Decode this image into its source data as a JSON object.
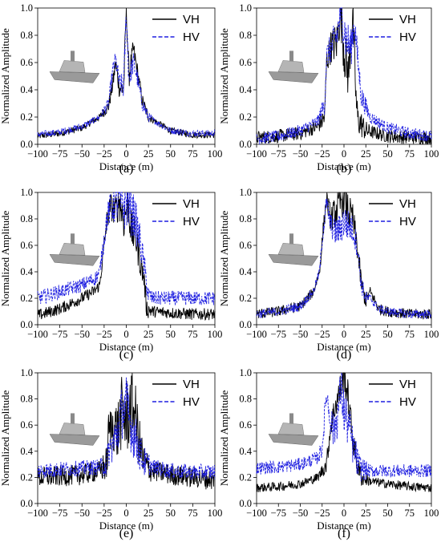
{
  "figure": {
    "ylabel": "Normalized Amplitude",
    "xlabel": "Distance (m)",
    "x_ticks": [
      "−100",
      "−75",
      "−50",
      "−25",
      "0",
      "25",
      "50",
      "75",
      "100"
    ],
    "y_ticks": [
      "0.0",
      "0.2",
      "0.4",
      "0.6",
      "0.8",
      "1.0"
    ],
    "legend": [
      "VH",
      "HV"
    ],
    "colors": {
      "VH": "#000000",
      "HV": "#1f1fe0",
      "ship": "#9a9a9a"
    }
  },
  "chart_data": [
    {
      "panel": "(a)",
      "type": "line",
      "icon": "frigate-icon",
      "xlabel": "Distance (m)",
      "ylabel": "Normalized Amplitude",
      "xlim": [
        -100,
        100
      ],
      "ylim": [
        0,
        1
      ],
      "legend_position": "top-right",
      "series": [
        {
          "name": "VH",
          "style": "solid",
          "noise": 0.025,
          "profile": [
            [
              -100,
              0.06
            ],
            [
              -75,
              0.08
            ],
            [
              -50,
              0.12
            ],
            [
              -30,
              0.2
            ],
            [
              -20,
              0.28
            ],
            [
              -15,
              0.45
            ],
            [
              -12,
              0.6
            ],
            [
              -8,
              0.42
            ],
            [
              -3,
              0.4
            ],
            [
              0,
              1.0
            ],
            [
              3,
              0.5
            ],
            [
              8,
              0.7
            ],
            [
              12,
              0.55
            ],
            [
              18,
              0.32
            ],
            [
              25,
              0.2
            ],
            [
              50,
              0.1
            ],
            [
              75,
              0.07
            ],
            [
              100,
              0.07
            ]
          ]
        },
        {
          "name": "HV",
          "style": "dashed",
          "noise": 0.025,
          "profile": [
            [
              -100,
              0.07
            ],
            [
              -75,
              0.09
            ],
            [
              -50,
              0.13
            ],
            [
              -30,
              0.2
            ],
            [
              -20,
              0.3
            ],
            [
              -15,
              0.55
            ],
            [
              -12,
              0.62
            ],
            [
              -8,
              0.45
            ],
            [
              -3,
              0.42
            ],
            [
              0,
              0.97
            ],
            [
              3,
              0.48
            ],
            [
              8,
              0.6
            ],
            [
              12,
              0.5
            ],
            [
              18,
              0.3
            ],
            [
              25,
              0.2
            ],
            [
              50,
              0.1
            ],
            [
              75,
              0.08
            ],
            [
              100,
              0.08
            ]
          ]
        }
      ]
    },
    {
      "panel": "(b)",
      "type": "line",
      "icon": "destroyer-icon",
      "xlabel": "Distance (m)",
      "ylabel": "Normalized Amplitude",
      "xlim": [
        -100,
        100
      ],
      "ylim": [
        0,
        1
      ],
      "legend_position": "top-right",
      "series": [
        {
          "name": "VH",
          "style": "solid",
          "noise": 0.05,
          "profile": [
            [
              -100,
              0.05
            ],
            [
              -75,
              0.06
            ],
            [
              -50,
              0.08
            ],
            [
              -30,
              0.13
            ],
            [
              -22,
              0.2
            ],
            [
              -20,
              0.6
            ],
            [
              -15,
              0.72
            ],
            [
              -8,
              0.75
            ],
            [
              -4,
              1.0
            ],
            [
              0,
              0.7
            ],
            [
              5,
              0.5
            ],
            [
              10,
              0.95
            ],
            [
              14,
              0.3
            ],
            [
              16,
              0.18
            ],
            [
              25,
              0.1
            ],
            [
              50,
              0.06
            ],
            [
              75,
              0.05
            ],
            [
              100,
              0.05
            ]
          ]
        },
        {
          "name": "HV",
          "style": "dashed",
          "noise": 0.045,
          "profile": [
            [
              -100,
              0.04
            ],
            [
              -75,
              0.06
            ],
            [
              -50,
              0.1
            ],
            [
              -30,
              0.17
            ],
            [
              -22,
              0.3
            ],
            [
              -20,
              0.65
            ],
            [
              -15,
              0.7
            ],
            [
              -8,
              0.8
            ],
            [
              -3,
              1.0
            ],
            [
              2,
              0.78
            ],
            [
              8,
              0.7
            ],
            [
              12,
              0.9
            ],
            [
              16,
              0.6
            ],
            [
              20,
              0.35
            ],
            [
              30,
              0.2
            ],
            [
              50,
              0.12
            ],
            [
              75,
              0.08
            ],
            [
              100,
              0.06
            ]
          ]
        }
      ]
    },
    {
      "panel": "(c)",
      "type": "line",
      "icon": "cargo-ship-icon",
      "xlabel": "Distance (m)",
      "ylabel": "Normalized Amplitude",
      "xlim": [
        -100,
        100
      ],
      "ylim": [
        0,
        1
      ],
      "legend_position": "top-right",
      "series": [
        {
          "name": "VH",
          "style": "solid",
          "noise": 0.045,
          "profile": [
            [
              -100,
              0.07
            ],
            [
              -75,
              0.12
            ],
            [
              -50,
              0.2
            ],
            [
              -35,
              0.26
            ],
            [
              -30,
              0.3
            ],
            [
              -25,
              0.6
            ],
            [
              -22,
              0.78
            ],
            [
              -18,
              0.9
            ],
            [
              -12,
              0.85
            ],
            [
              -8,
              0.95
            ],
            [
              -3,
              0.8
            ],
            [
              2,
              0.92
            ],
            [
              6,
              0.7
            ],
            [
              10,
              0.68
            ],
            [
              15,
              0.5
            ],
            [
              20,
              0.35
            ],
            [
              23,
              0.12
            ],
            [
              30,
              0.1
            ],
            [
              50,
              0.09
            ],
            [
              75,
              0.08
            ],
            [
              100,
              0.08
            ]
          ]
        },
        {
          "name": "HV",
          "style": "dashed",
          "noise": 0.055,
          "profile": [
            [
              -100,
              0.2
            ],
            [
              -75,
              0.25
            ],
            [
              -50,
              0.3
            ],
            [
              -35,
              0.35
            ],
            [
              -30,
              0.4
            ],
            [
              -25,
              0.65
            ],
            [
              -22,
              0.8
            ],
            [
              -18,
              0.88
            ],
            [
              -12,
              0.92
            ],
            [
              -8,
              0.95
            ],
            [
              -3,
              0.9
            ],
            [
              2,
              0.95
            ],
            [
              6,
              0.85
            ],
            [
              10,
              0.8
            ],
            [
              15,
              0.65
            ],
            [
              20,
              0.45
            ],
            [
              25,
              0.22
            ],
            [
              30,
              0.2
            ],
            [
              50,
              0.2
            ],
            [
              75,
              0.2
            ],
            [
              100,
              0.2
            ]
          ]
        }
      ]
    },
    {
      "panel": "(d)",
      "type": "line",
      "icon": "crane-ship-icon",
      "xlabel": "Distance (m)",
      "ylabel": "Normalized Amplitude",
      "xlim": [
        -100,
        100
      ],
      "ylim": [
        0,
        1
      ],
      "legend_position": "top-right",
      "series": [
        {
          "name": "VH",
          "style": "solid",
          "noise": 0.04,
          "profile": [
            [
              -100,
              0.08
            ],
            [
              -75,
              0.1
            ],
            [
              -50,
              0.14
            ],
            [
              -35,
              0.25
            ],
            [
              -28,
              0.4
            ],
            [
              -24,
              0.7
            ],
            [
              -20,
              0.95
            ],
            [
              -15,
              0.8
            ],
            [
              -10,
              0.85
            ],
            [
              -5,
              0.9
            ],
            [
              0,
              1.0
            ],
            [
              5,
              0.85
            ],
            [
              10,
              0.8
            ],
            [
              15,
              0.6
            ],
            [
              20,
              0.3
            ],
            [
              25,
              0.18
            ],
            [
              30,
              0.25
            ],
            [
              40,
              0.12
            ],
            [
              50,
              0.1
            ],
            [
              75,
              0.08
            ],
            [
              100,
              0.08
            ]
          ]
        },
        {
          "name": "HV",
          "style": "dashed",
          "noise": 0.035,
          "profile": [
            [
              -100,
              0.08
            ],
            [
              -75,
              0.1
            ],
            [
              -50,
              0.14
            ],
            [
              -35,
              0.25
            ],
            [
              -28,
              0.4
            ],
            [
              -24,
              0.7
            ],
            [
              -20,
              0.92
            ],
            [
              -15,
              0.75
            ],
            [
              -10,
              0.7
            ],
            [
              -5,
              0.72
            ],
            [
              0,
              0.78
            ],
            [
              5,
              0.75
            ],
            [
              10,
              0.72
            ],
            [
              15,
              0.6
            ],
            [
              20,
              0.3
            ],
            [
              25,
              0.2
            ],
            [
              30,
              0.2
            ],
            [
              40,
              0.12
            ],
            [
              50,
              0.1
            ],
            [
              75,
              0.08
            ],
            [
              100,
              0.08
            ]
          ]
        }
      ]
    },
    {
      "panel": "(e)",
      "type": "line",
      "icon": "barge-icon",
      "xlabel": "Distance (m)",
      "ylabel": "Normalized Amplitude",
      "xlim": [
        -100,
        100
      ],
      "ylim": [
        0,
        1
      ],
      "legend_position": "top-right",
      "series": [
        {
          "name": "VH",
          "style": "solid",
          "noise": 0.08,
          "profile": [
            [
              -100,
              0.2
            ],
            [
              -75,
              0.21
            ],
            [
              -50,
              0.22
            ],
            [
              -30,
              0.25
            ],
            [
              -22,
              0.3
            ],
            [
              -20,
              0.55
            ],
            [
              -15,
              0.6
            ],
            [
              -10,
              0.55
            ],
            [
              -5,
              0.7
            ],
            [
              0,
              0.65
            ],
            [
              5,
              0.75
            ],
            [
              10,
              0.7
            ],
            [
              15,
              0.45
            ],
            [
              20,
              0.3
            ],
            [
              30,
              0.25
            ],
            [
              50,
              0.22
            ],
            [
              75,
              0.2
            ],
            [
              100,
              0.18
            ]
          ]
        },
        {
          "name": "HV",
          "style": "dashed",
          "noise": 0.06,
          "profile": [
            [
              -100,
              0.25
            ],
            [
              -75,
              0.26
            ],
            [
              -50,
              0.27
            ],
            [
              -30,
              0.28
            ],
            [
              -22,
              0.3
            ],
            [
              -20,
              0.4
            ],
            [
              -15,
              0.45
            ],
            [
              -10,
              0.55
            ],
            [
              -5,
              0.7
            ],
            [
              0,
              0.75
            ],
            [
              5,
              0.6
            ],
            [
              10,
              0.5
            ],
            [
              15,
              0.4
            ],
            [
              20,
              0.32
            ],
            [
              30,
              0.28
            ],
            [
              50,
              0.25
            ],
            [
              75,
              0.24
            ],
            [
              100,
              0.24
            ]
          ]
        }
      ]
    },
    {
      "panel": "(f)",
      "type": "line",
      "icon": "support-ship-icon",
      "xlabel": "Distance (m)",
      "ylabel": "Normalized Amplitude",
      "xlim": [
        -100,
        100
      ],
      "ylim": [
        0,
        1
      ],
      "legend_position": "top-right",
      "series": [
        {
          "name": "VH",
          "style": "solid",
          "noise": 0.035,
          "profile": [
            [
              -100,
              0.12
            ],
            [
              -75,
              0.13
            ],
            [
              -50,
              0.15
            ],
            [
              -30,
              0.2
            ],
            [
              -20,
              0.3
            ],
            [
              -15,
              0.6
            ],
            [
              -10,
              0.75
            ],
            [
              -5,
              0.85
            ],
            [
              0,
              1.0
            ],
            [
              5,
              0.8
            ],
            [
              10,
              0.5
            ],
            [
              15,
              0.3
            ],
            [
              20,
              0.2
            ],
            [
              30,
              0.17
            ],
            [
              50,
              0.15
            ],
            [
              75,
              0.13
            ],
            [
              100,
              0.12
            ]
          ]
        },
        {
          "name": "HV",
          "style": "dashed",
          "noise": 0.05,
          "profile": [
            [
              -100,
              0.27
            ],
            [
              -75,
              0.28
            ],
            [
              -50,
              0.3
            ],
            [
              -30,
              0.35
            ],
            [
              -25,
              0.42
            ],
            [
              -20,
              0.85
            ],
            [
              -17,
              0.7
            ],
            [
              -12,
              0.55
            ],
            [
              -8,
              0.65
            ],
            [
              -3,
              0.9
            ],
            [
              0,
              0.7
            ],
            [
              5,
              0.6
            ],
            [
              10,
              0.45
            ],
            [
              14,
              0.35
            ],
            [
              17,
              0.28
            ],
            [
              25,
              0.25
            ],
            [
              50,
              0.25
            ],
            [
              75,
              0.25
            ],
            [
              100,
              0.25
            ]
          ]
        }
      ]
    }
  ]
}
